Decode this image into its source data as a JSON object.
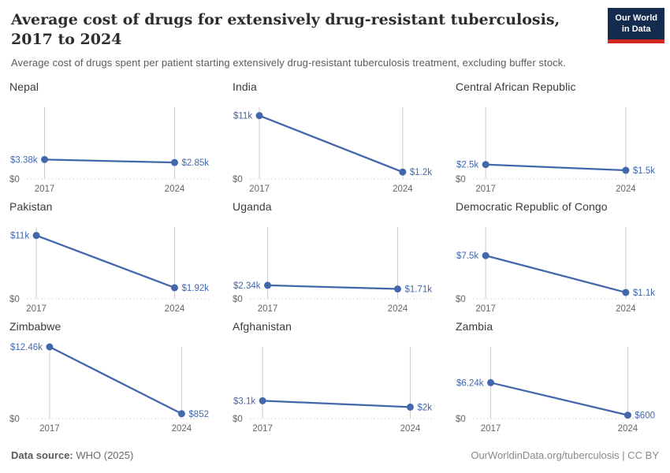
{
  "header": {
    "title": "Average cost of drugs for extensively drug-resistant tuberculosis, 2017 to 2024",
    "subtitle": "Average cost of drugs spent per patient starting extensively drug-resistant tuberculosis treatment, excluding buffer stock.",
    "logo": {
      "line1": "Our World",
      "line2": "in Data"
    }
  },
  "footer": {
    "source_label": "Data source:",
    "source_value": " WHO (2025)",
    "attribution": "OurWorldinData.org/tuberculosis | CC BY"
  },
  "colors": {
    "series_blue": "#4367ac",
    "axis_line_gray": "#cbcbcb",
    "zero_gridline_gray": "#cdcdcd",
    "axis_text_gray": "#666666",
    "logo_navy": "#122b4e",
    "logo_red": "#d1281f"
  },
  "chart_data": {
    "type": "line",
    "title": "Average cost of drugs for extensively drug-resistant tuberculosis, 2017 to 2024",
    "subtitle": "Average cost of drugs spent per patient starting extensively drug-resistant tuberculosis treatment, excluding buffer stock.",
    "x": [
      2017,
      2024
    ],
    "x_tick_labels": [
      "2017",
      "2024"
    ],
    "shared_ylim": [
      0,
      12460
    ],
    "zero_label": "$0",
    "grid": "zero-line-only",
    "legend_position": "none",
    "facets": [
      {
        "country": "Nepal",
        "values": [
          3380,
          2850
        ],
        "labels": [
          "$3.38k",
          "$2.85k"
        ]
      },
      {
        "country": "India",
        "values": [
          11000,
          1200
        ],
        "labels": [
          "$11k",
          "$1.2k"
        ]
      },
      {
        "country": "Central African Republic",
        "values": [
          2500,
          1500
        ],
        "labels": [
          "$2.5k",
          "$1.5k"
        ]
      },
      {
        "country": "Pakistan",
        "values": [
          11000,
          1920
        ],
        "labels": [
          "$11k",
          "$1.92k"
        ]
      },
      {
        "country": "Uganda",
        "values": [
          2340,
          1710
        ],
        "labels": [
          "$2.34k",
          "$1.71k"
        ]
      },
      {
        "country": "Democratic Republic of Congo",
        "values": [
          7500,
          1100
        ],
        "labels": [
          "$7.5k",
          "$1.1k"
        ]
      },
      {
        "country": "Zimbabwe",
        "values": [
          12460,
          852
        ],
        "labels": [
          "$12.46k",
          "$852"
        ]
      },
      {
        "country": "Afghanistan",
        "values": [
          3100,
          2000
        ],
        "labels": [
          "$3.1k",
          "$2k"
        ]
      },
      {
        "country": "Zambia",
        "values": [
          6240,
          600
        ],
        "labels": [
          "$6.24k",
          "$600"
        ]
      }
    ]
  }
}
